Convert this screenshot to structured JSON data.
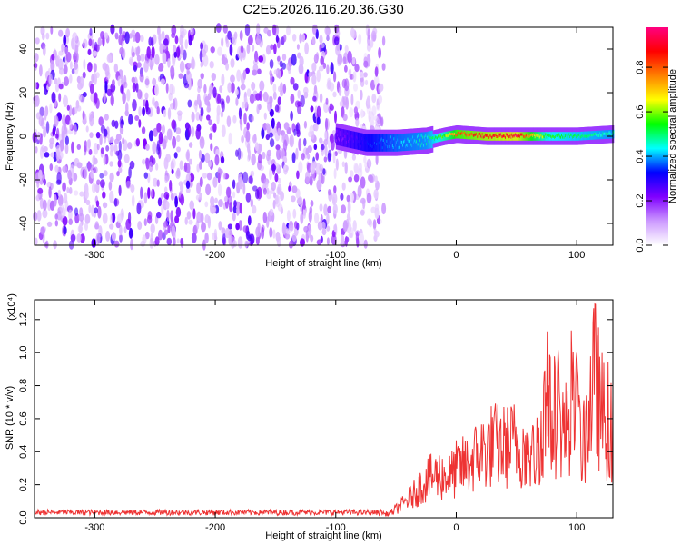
{
  "title": "C2E5.2026.116.20.36.G30",
  "chart_data": [
    {
      "type": "heatmap",
      "xlabel": "Height of straight line (km)",
      "ylabel": "Frequency (Hz)",
      "xlim": [
        -350,
        130
      ],
      "ylim": [
        -50,
        50
      ],
      "xticks": [
        -300,
        -200,
        -100,
        0,
        100
      ],
      "yticks": [
        -40,
        -20,
        0,
        20,
        40
      ],
      "noise_band": {
        "x_range": [
          -350,
          -70
        ],
        "y_range": [
          -50,
          50
        ],
        "typical_amplitude": 0.15
      },
      "signal_track": {
        "points": [
          {
            "x": -100,
            "y": 0,
            "amplitude": 0.2
          },
          {
            "x": -75,
            "y": -3,
            "amplitude": 0.35
          },
          {
            "x": -50,
            "y": -3,
            "amplitude": 0.45
          },
          {
            "x": -25,
            "y": -2,
            "amplitude": 0.5
          },
          {
            "x": -10,
            "y": 0,
            "amplitude": 0.65
          },
          {
            "x": 0,
            "y": 1,
            "amplitude": 0.85
          },
          {
            "x": 25,
            "y": 0,
            "amplitude": 0.95
          },
          {
            "x": 50,
            "y": 0,
            "amplitude": 1.0
          },
          {
            "x": 75,
            "y": 0,
            "amplitude": 0.6
          },
          {
            "x": 100,
            "y": 0,
            "amplitude": 0.55
          },
          {
            "x": 130,
            "y": 1,
            "amplitude": 0.5
          }
        ]
      },
      "colorbar": {
        "label": "Normalized spectral amplitude",
        "range": [
          0,
          1
        ],
        "ticks": [
          "0.0",
          "0.2",
          "0.4",
          "0.6",
          "0.8"
        ],
        "colors": [
          "#ffffff",
          "#cc99ff",
          "#8000ff",
          "#0000ff",
          "#00ffff",
          "#00ff00",
          "#ffff00",
          "#ff8000",
          "#ff0000",
          "#ff0080"
        ]
      }
    },
    {
      "type": "line",
      "xlabel": "Height of straight line (km)",
      "ylabel": "SNR (10 * v/v)",
      "multiplier": "(x10⁴)",
      "xlim": [
        -350,
        130
      ],
      "ylim": [
        0,
        1.32
      ],
      "xticks": [
        -300,
        -200,
        -100,
        0,
        100
      ],
      "yticks": [
        "0.0",
        "0.2",
        "0.4",
        "0.6",
        "0.8",
        "1.0",
        "1.2"
      ],
      "series": [
        {
          "name": "SNR",
          "color": "#ee3333",
          "x": [
            -350,
            -300,
            -200,
            -100,
            -70,
            -55,
            -45,
            -35,
            -25,
            -15,
            -5,
            0,
            10,
            20,
            30,
            40,
            50,
            60,
            65,
            70,
            75,
            80,
            85,
            90,
            95,
            100,
            105,
            110,
            115,
            120,
            125,
            130
          ],
          "y": [
            0.02,
            0.02,
            0.02,
            0.02,
            0.02,
            0.04,
            0.12,
            0.22,
            0.35,
            0.4,
            0.38,
            0.45,
            0.5,
            0.6,
            0.68,
            0.66,
            0.7,
            0.6,
            0.55,
            0.78,
            1.1,
            0.85,
            1.0,
            0.75,
            1.05,
            0.9,
            0.6,
            1.0,
            1.3,
            1.0,
            0.85,
            0.72
          ]
        }
      ]
    }
  ]
}
